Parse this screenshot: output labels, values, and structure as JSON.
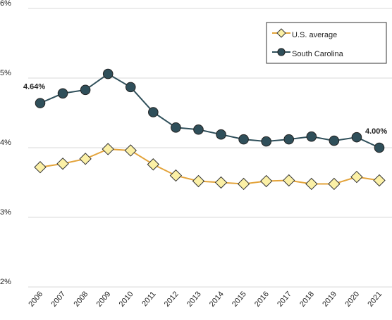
{
  "chart_data": {
    "type": "line",
    "categories": [
      "2006",
      "2007",
      "2008",
      "2009",
      "2010",
      "2011",
      "2012",
      "2013",
      "2014",
      "2015",
      "2016",
      "2017",
      "2018",
      "2019",
      "2020",
      "2021"
    ],
    "series": [
      {
        "name": "U.S. average",
        "color": "#e3a33a",
        "marker": "diamond",
        "marker_color": "#fbf0a6",
        "values": [
          3.72,
          3.77,
          3.84,
          3.98,
          3.96,
          3.76,
          3.6,
          3.52,
          3.5,
          3.48,
          3.52,
          3.53,
          3.48,
          3.48,
          3.58,
          3.53
        ]
      },
      {
        "name": "South Carolina",
        "color": "#2f4f5a",
        "marker": "circle",
        "marker_color": "#2f4f5a",
        "values": [
          4.64,
          4.78,
          4.83,
          5.06,
          4.87,
          4.51,
          4.29,
          4.26,
          4.19,
          4.12,
          4.09,
          4.12,
          4.16,
          4.1,
          4.15,
          4.0
        ],
        "value_labels": [
          "4.64%",
          null,
          null,
          null,
          null,
          null,
          null,
          null,
          null,
          null,
          null,
          null,
          null,
          null,
          null,
          "4.00%"
        ]
      }
    ],
    "ylim": [
      2,
      6
    ],
    "yticks": [
      {
        "value": 2,
        "label": "2%"
      },
      {
        "value": 3,
        "label": "3%"
      },
      {
        "value": 4,
        "label": "4%"
      },
      {
        "value": 5,
        "label": "5%"
      },
      {
        "value": 6,
        "label": "6%"
      }
    ],
    "grid": true,
    "legend": "top-right"
  }
}
